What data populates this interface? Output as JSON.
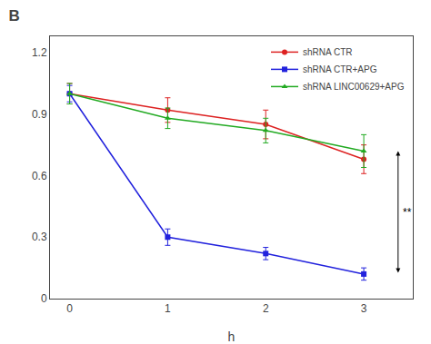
{
  "chart_data": {
    "type": "line",
    "title": "B",
    "xlabel": "h",
    "x": [
      0,
      1,
      2,
      3
    ],
    "series": [
      {
        "name": "shRNA CTR",
        "color": "#dd2222",
        "marker": "circle",
        "values": [
          1.0,
          0.92,
          0.85,
          0.68
        ],
        "error": [
          0.05,
          0.06,
          0.07,
          0.07
        ]
      },
      {
        "name": "shRNA CTR+APG",
        "color": "#2222dd",
        "marker": "square",
        "values": [
          1.0,
          0.3,
          0.22,
          0.12
        ],
        "error": [
          0.04,
          0.04,
          0.03,
          0.03
        ]
      },
      {
        "name": "shRNA LINC00629+APG",
        "color": "#22aa22",
        "marker": "triangle-up",
        "values": [
          1.0,
          0.88,
          0.82,
          0.72
        ],
        "error": [
          0.05,
          0.05,
          0.06,
          0.08
        ]
      }
    ],
    "xlim": [
      -0.2,
      3.5
    ],
    "xticks": [
      0,
      1,
      2,
      3
    ],
    "ylim": [
      0,
      1.28
    ],
    "yticks": [
      0,
      0.3,
      0.6,
      0.9,
      1.2
    ],
    "grid": false,
    "legend": "upper right",
    "annotations": [
      {
        "text": "**",
        "x": 3.35,
        "y0": 0.12,
        "y1": 0.72
      }
    ]
  }
}
